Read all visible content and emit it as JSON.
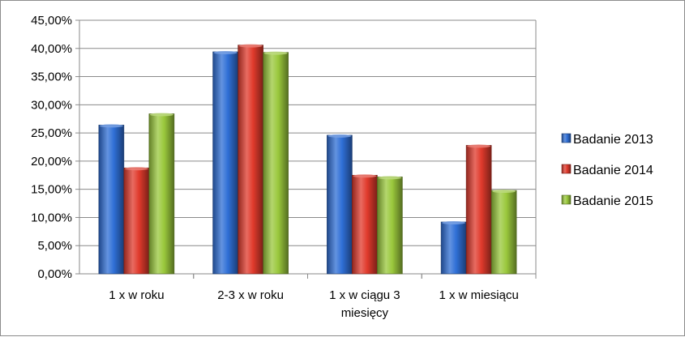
{
  "chart_data": {
    "type": "bar",
    "categories": [
      [
        "1 x w roku"
      ],
      [
        "2-3 x w roku"
      ],
      [
        "1 x w ciągu 3",
        "miesięcy"
      ],
      [
        "1 x w miesiącu"
      ]
    ],
    "series": [
      {
        "name": "Badanie 2013",
        "color": "#2f6fd6",
        "values": [
          26.4,
          39.4,
          24.6,
          9.2
        ]
      },
      {
        "name": "Badanie 2014",
        "color": "#e03a2c",
        "values": [
          18.8,
          40.6,
          17.5,
          22.8
        ]
      },
      {
        "name": "Badanie 2015",
        "color": "#9ac83c",
        "values": [
          28.4,
          39.3,
          17.2,
          14.8
        ]
      }
    ],
    "ylim": [
      0,
      45
    ],
    "yticks": [
      "0,00%",
      "5,00%",
      "10,00%",
      "15,00%",
      "20,00%",
      "25,00%",
      "30,00%",
      "35,00%",
      "40,00%",
      "45,00%"
    ],
    "grid": true,
    "legend_position": "right"
  }
}
